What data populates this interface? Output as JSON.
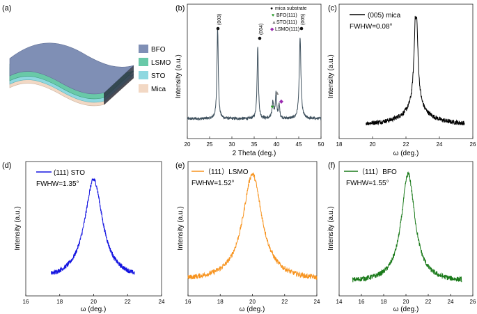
{
  "panels": [
    {
      "id": "a",
      "label": "(a)",
      "legend": [
        {
          "text": "BFO",
          "color": "#7f8fb5"
        },
        {
          "text": "LSMO",
          "color": "#69c9a8"
        },
        {
          "text": "STO",
          "color": "#8fd8e0"
        },
        {
          "text": "Mica",
          "color": "#f2d8c4"
        }
      ]
    },
    {
      "id": "b",
      "label": "(b)",
      "ylabel": "Intensity (a.u.)",
      "xlabel": "2 Theta (deg.)",
      "xticks": [
        "20",
        "25",
        "30",
        "35",
        "40",
        "45",
        "50"
      ],
      "peak_labels": [
        "(003)",
        "(004)",
        "(005)"
      ],
      "legend": [
        {
          "text": "mica substrate",
          "symbol": "●",
          "color": "#111111"
        },
        {
          "text": "BFO(111)",
          "symbol": "♥",
          "color": "#2a9a2a"
        },
        {
          "text": "STO(111)",
          "symbol": "▲",
          "color": "#888888"
        },
        {
          "text": "LSMO(111)",
          "symbol": "◆",
          "color": "#9a2ab0"
        }
      ]
    },
    {
      "id": "c",
      "label": "(c)",
      "ylabel": "Intensity (a.u.)",
      "xlabel": "ω (deg.)",
      "xticks": [
        "18",
        "20",
        "22",
        "24",
        "26"
      ],
      "series_name": "(005) mica",
      "fwhm": "FWHW=0.08°"
    },
    {
      "id": "d",
      "label": "(d)",
      "ylabel": "Intensity (a.u.)",
      "xlabel": "ω (deg.)",
      "xticks": [
        "16",
        "18",
        "20",
        "22",
        "24"
      ],
      "series_name": "(111) STO",
      "fwhm": "FWHW=1.35°"
    },
    {
      "id": "e",
      "label": "(e)",
      "ylabel": "Intensity (a.u.)",
      "xlabel": "ω (deg.)",
      "xticks": [
        "16",
        "18",
        "20",
        "22",
        "24"
      ],
      "series_name": "（111）LSMO",
      "fwhm": "FWHW=1.52°"
    },
    {
      "id": "f",
      "label": "(f)",
      "ylabel": "Intensity (a.u.)",
      "xlabel": "ω (deg.)",
      "xticks": [
        "14",
        "16",
        "18",
        "20",
        "22",
        "24",
        "26"
      ],
      "series_name": "（111）BFO",
      "fwhm": "FWHW=1.55°"
    }
  ],
  "chart_data": [
    {
      "type": "line",
      "panel": "b",
      "xlim": [
        20,
        50
      ],
      "color": "#3d4f5c",
      "baseline": 0.07,
      "peaks": [
        {
          "x": 26.8,
          "y": 1.0,
          "w": 0.35
        },
        {
          "x": 35.8,
          "y": 0.78,
          "w": 0.35
        },
        {
          "x": 39.2,
          "y": 0.18,
          "w": 0.4
        },
        {
          "x": 39.9,
          "y": 0.27,
          "w": 0.35
        },
        {
          "x": 40.6,
          "y": 0.14,
          "w": 0.35
        },
        {
          "x": 45.3,
          "y": 0.87,
          "w": 0.45
        }
      ]
    },
    {
      "type": "line",
      "panel": "c",
      "xlim": [
        18,
        26
      ],
      "data_range": [
        19.6,
        25.5
      ],
      "center": 22.6,
      "color": "#000000",
      "shape": "sharp-lorentzian",
      "width": 0.08
    },
    {
      "type": "line",
      "panel": "d",
      "xlim": [
        16,
        24
      ],
      "data_range": [
        17.5,
        22.4
      ],
      "center": 20.0,
      "color": "#1414e0",
      "width": 1.35
    },
    {
      "type": "line",
      "panel": "e",
      "xlim": [
        16,
        24
      ],
      "data_range": [
        16.0,
        24.0
      ],
      "center": 20.0,
      "color": "#f7931e",
      "width": 1.52
    },
    {
      "type": "line",
      "panel": "f",
      "xlim": [
        14,
        26
      ],
      "data_range": [
        15.2,
        25.0
      ],
      "center": 20.2,
      "color": "#1a7a1a",
      "width": 1.55
    }
  ]
}
